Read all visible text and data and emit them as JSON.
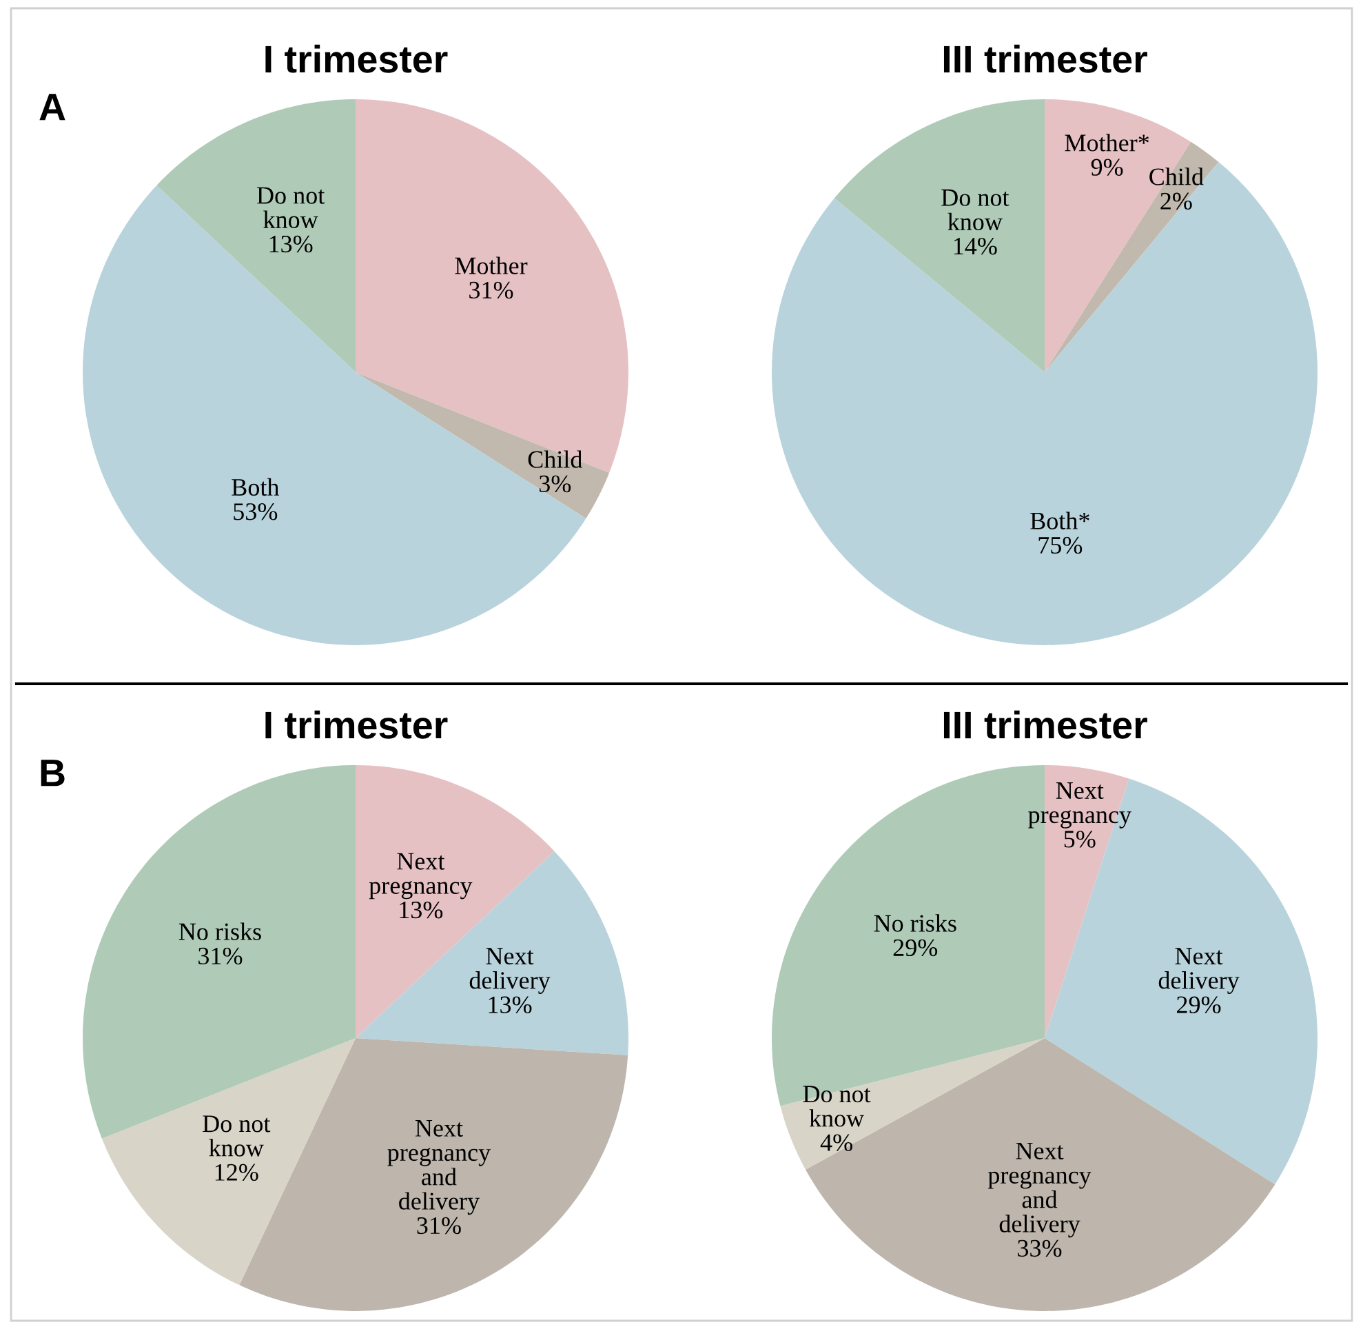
{
  "chart_data": [
    {
      "type": "pie",
      "title": "I trimester",
      "annotations": [
        "A"
      ],
      "categories": [
        "Mother",
        "Child",
        "Both",
        "Do not\nknow"
      ],
      "values": [
        31,
        3,
        53,
        13
      ],
      "value_labels": [
        "31%",
        "3%",
        "53%",
        "13%"
      ],
      "colors": [
        "#e6c1c4",
        "#c2b9ae",
        "#b9d3dc",
        "#afcbb8"
      ]
    },
    {
      "type": "pie",
      "title": "III trimester",
      "categories": [
        "Mother*",
        "Child",
        "Both*",
        "Do not\nknow"
      ],
      "values": [
        9,
        2,
        75,
        14
      ],
      "value_labels": [
        "9%",
        "2%",
        "75%",
        "14%"
      ],
      "colors": [
        "#e6c1c4",
        "#c2b9ae",
        "#b9d3dc",
        "#afcbb8"
      ]
    },
    {
      "type": "pie",
      "title": "I trimester",
      "annotations": [
        "B"
      ],
      "categories": [
        "Next\npregnancy",
        "Next\ndelivery",
        "Next\npregnancy\nand\ndelivery",
        "Do not\nknow",
        "No risks"
      ],
      "values": [
        13,
        13,
        31,
        12,
        31
      ],
      "value_labels": [
        "13%",
        "13%",
        "31%",
        "12%",
        "31%"
      ],
      "colors": [
        "#e6c1c4",
        "#b9d3dc",
        "#beb6ac",
        "#d9d4c8",
        "#afcbb8"
      ]
    },
    {
      "type": "pie",
      "title": "III trimester",
      "categories": [
        "Next\npregnancy",
        "Next\ndelivery",
        "Next\npregnancy\nand\ndelivery",
        "Do not\nknow",
        "No risks"
      ],
      "values": [
        5,
        29,
        33,
        4,
        29
      ],
      "value_labels": [
        "5%",
        "29%",
        "33%",
        "4%",
        "29%"
      ],
      "colors": [
        "#e6c1c4",
        "#b9d3dc",
        "#beb6ac",
        "#d9d4c8",
        "#afcbb8"
      ]
    }
  ]
}
